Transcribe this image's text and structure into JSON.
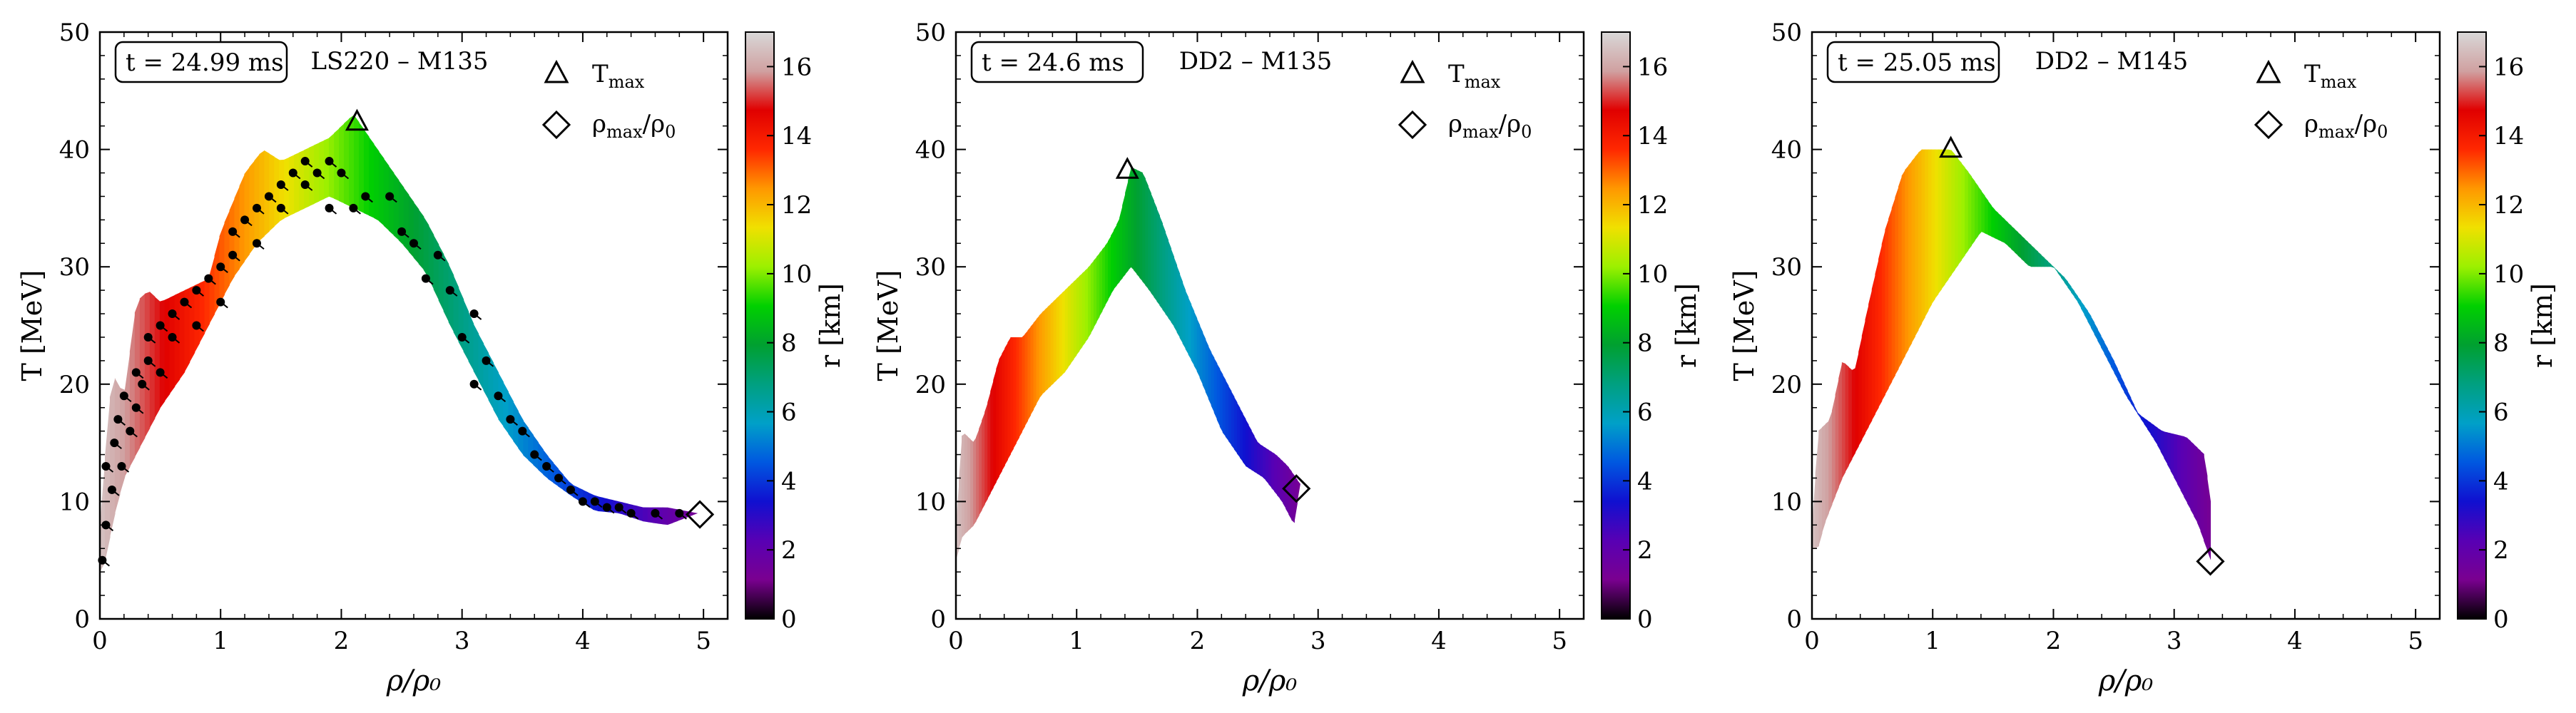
{
  "chart_data": [
    {
      "type": "scatter",
      "title": "LS220 – M135",
      "time_label": "t = 24.99 ms",
      "xlabel": "ρ/ρ₀",
      "ylabel": "T [MeV]",
      "xlim": [
        0,
        5.2
      ],
      "ylim": [
        0,
        50
      ],
      "xticks": [
        0,
        1,
        2,
        3,
        4,
        5
      ],
      "yticks": [
        0,
        10,
        20,
        30,
        40,
        50
      ],
      "band_upper": [
        [
          0.0,
          8
        ],
        [
          0.05,
          15
        ],
        [
          0.1,
          21
        ],
        [
          0.2,
          19
        ],
        [
          0.3,
          27
        ],
        [
          0.4,
          28
        ],
        [
          0.5,
          27
        ],
        [
          0.7,
          28
        ],
        [
          0.9,
          29
        ],
        [
          1.0,
          33
        ],
        [
          1.2,
          38
        ],
        [
          1.35,
          40
        ],
        [
          1.5,
          39
        ],
        [
          1.7,
          40
        ],
        [
          1.9,
          41
        ],
        [
          2.1,
          43
        ],
        [
          2.3,
          40
        ],
        [
          2.5,
          37
        ],
        [
          2.7,
          34
        ],
        [
          2.9,
          30
        ],
        [
          3.1,
          25
        ],
        [
          3.3,
          21
        ],
        [
          3.5,
          17
        ],
        [
          3.7,
          14
        ],
        [
          3.9,
          11.5
        ],
        [
          4.1,
          10.5
        ],
        [
          4.3,
          10
        ],
        [
          4.5,
          9.5
        ],
        [
          4.7,
          9.5
        ],
        [
          4.95,
          9
        ]
      ],
      "band_lower": [
        [
          4.95,
          9
        ],
        [
          4.7,
          8
        ],
        [
          4.5,
          8.3
        ],
        [
          4.3,
          9
        ],
        [
          4.1,
          9.2
        ],
        [
          3.9,
          10.5
        ],
        [
          3.7,
          12
        ],
        [
          3.5,
          14
        ],
        [
          3.3,
          17
        ],
        [
          3.1,
          21
        ],
        [
          2.9,
          25
        ],
        [
          2.7,
          29.5
        ],
        [
          2.5,
          32
        ],
        [
          2.3,
          34
        ],
        [
          2.1,
          35
        ],
        [
          1.9,
          36
        ],
        [
          1.7,
          35
        ],
        [
          1.5,
          34
        ],
        [
          1.3,
          32
        ],
        [
          1.1,
          29
        ],
        [
          0.9,
          25
        ],
        [
          0.7,
          21
        ],
        [
          0.5,
          18
        ],
        [
          0.3,
          14
        ],
        [
          0.2,
          12
        ],
        [
          0.1,
          8
        ],
        [
          0.05,
          5
        ],
        [
          0.0,
          4
        ]
      ],
      "markers": [
        {
          "x": 0.02,
          "y": 5
        },
        {
          "x": 0.05,
          "y": 8
        },
        {
          "x": 0.05,
          "y": 13
        },
        {
          "x": 0.1,
          "y": 11
        },
        {
          "x": 0.12,
          "y": 15
        },
        {
          "x": 0.15,
          "y": 17
        },
        {
          "x": 0.18,
          "y": 13
        },
        {
          "x": 0.2,
          "y": 19
        },
        {
          "x": 0.25,
          "y": 16
        },
        {
          "x": 0.3,
          "y": 18
        },
        {
          "x": 0.3,
          "y": 21
        },
        {
          "x": 0.35,
          "y": 20
        },
        {
          "x": 0.4,
          "y": 22
        },
        {
          "x": 0.4,
          "y": 24
        },
        {
          "x": 0.5,
          "y": 21
        },
        {
          "x": 0.5,
          "y": 25
        },
        {
          "x": 0.6,
          "y": 24
        },
        {
          "x": 0.6,
          "y": 26
        },
        {
          "x": 0.7,
          "y": 27
        },
        {
          "x": 0.8,
          "y": 28
        },
        {
          "x": 0.8,
          "y": 25
        },
        {
          "x": 0.9,
          "y": 29
        },
        {
          "x": 1.0,
          "y": 30
        },
        {
          "x": 1.0,
          "y": 27
        },
        {
          "x": 1.1,
          "y": 31
        },
        {
          "x": 1.1,
          "y": 33
        },
        {
          "x": 1.2,
          "y": 34
        },
        {
          "x": 1.3,
          "y": 32
        },
        {
          "x": 1.3,
          "y": 35
        },
        {
          "x": 1.4,
          "y": 36
        },
        {
          "x": 1.5,
          "y": 35
        },
        {
          "x": 1.5,
          "y": 37
        },
        {
          "x": 1.6,
          "y": 38
        },
        {
          "x": 1.7,
          "y": 37
        },
        {
          "x": 1.7,
          "y": 39
        },
        {
          "x": 1.8,
          "y": 38
        },
        {
          "x": 1.9,
          "y": 39
        },
        {
          "x": 1.9,
          "y": 35
        },
        {
          "x": 2.0,
          "y": 38
        },
        {
          "x": 2.1,
          "y": 35
        },
        {
          "x": 2.2,
          "y": 36
        },
        {
          "x": 2.4,
          "y": 36
        },
        {
          "x": 2.5,
          "y": 33
        },
        {
          "x": 2.6,
          "y": 32
        },
        {
          "x": 2.7,
          "y": 29
        },
        {
          "x": 2.8,
          "y": 31
        },
        {
          "x": 2.9,
          "y": 28
        },
        {
          "x": 3.0,
          "y": 24
        },
        {
          "x": 3.1,
          "y": 26
        },
        {
          "x": 3.1,
          "y": 20
        },
        {
          "x": 3.2,
          "y": 22
        },
        {
          "x": 3.3,
          "y": 19
        },
        {
          "x": 3.4,
          "y": 17
        },
        {
          "x": 3.5,
          "y": 16
        },
        {
          "x": 3.6,
          "y": 14
        },
        {
          "x": 3.7,
          "y": 13
        },
        {
          "x": 3.8,
          "y": 12
        },
        {
          "x": 3.9,
          "y": 11
        },
        {
          "x": 4.0,
          "y": 10
        },
        {
          "x": 4.1,
          "y": 10
        },
        {
          "x": 4.2,
          "y": 9.5
        },
        {
          "x": 4.3,
          "y": 9.5
        },
        {
          "x": 4.4,
          "y": 9
        },
        {
          "x": 4.6,
          "y": 9
        },
        {
          "x": 4.8,
          "y": 9
        }
      ],
      "t_max": {
        "x": 2.13,
        "y": 42.3
      },
      "rho_max": {
        "x": 4.97,
        "y": 8.9
      },
      "legend": [
        "T_max",
        "ρ_max/ρ₀"
      ]
    },
    {
      "type": "scatter",
      "title": "DD2 – M135",
      "time_label": "t = 24.6 ms",
      "xlabel": "ρ/ρ₀",
      "ylabel": "T [MeV]",
      "xlim": [
        0,
        5.2
      ],
      "ylim": [
        0,
        50
      ],
      "xticks": [
        0,
        1,
        2,
        3,
        4,
        5
      ],
      "yticks": [
        0,
        10,
        20,
        30,
        40,
        50
      ],
      "band_upper": [
        [
          0.0,
          8
        ],
        [
          0.05,
          16
        ],
        [
          0.15,
          15
        ],
        [
          0.25,
          18
        ],
        [
          0.35,
          22
        ],
        [
          0.45,
          24
        ],
        [
          0.55,
          24
        ],
        [
          0.7,
          26
        ],
        [
          0.9,
          28
        ],
        [
          1.1,
          30
        ],
        [
          1.25,
          32
        ],
        [
          1.35,
          34
        ],
        [
          1.45,
          38.5
        ],
        [
          1.55,
          38
        ],
        [
          1.7,
          34
        ],
        [
          1.9,
          28
        ],
        [
          2.1,
          23
        ],
        [
          2.3,
          19
        ],
        [
          2.5,
          15
        ],
        [
          2.65,
          14
        ],
        [
          2.75,
          13
        ],
        [
          2.85,
          11.5
        ]
      ],
      "band_lower": [
        [
          2.85,
          11.5
        ],
        [
          2.8,
          8
        ],
        [
          2.7,
          10
        ],
        [
          2.55,
          12
        ],
        [
          2.4,
          13
        ],
        [
          2.2,
          16
        ],
        [
          2.0,
          21
        ],
        [
          1.8,
          25
        ],
        [
          1.6,
          28
        ],
        [
          1.45,
          30
        ],
        [
          1.3,
          28
        ],
        [
          1.1,
          24
        ],
        [
          0.9,
          21
        ],
        [
          0.7,
          19
        ],
        [
          0.5,
          15
        ],
        [
          0.3,
          11
        ],
        [
          0.15,
          8
        ],
        [
          0.05,
          7
        ],
        [
          0.0,
          5
        ]
      ],
      "markers": [],
      "t_max": {
        "x": 1.42,
        "y": 38.2
      },
      "rho_max": {
        "x": 2.82,
        "y": 11.1
      },
      "legend": [
        "T_max",
        "ρ_max/ρ₀"
      ]
    },
    {
      "type": "scatter",
      "title": "DD2 – M145",
      "time_label": "t = 25.05 ms",
      "xlabel": "ρ/ρ₀",
      "ylabel": "T [MeV]",
      "xlim": [
        0,
        5.2
      ],
      "ylim": [
        0,
        50
      ],
      "xticks": [
        0,
        1,
        2,
        3,
        4,
        5
      ],
      "yticks": [
        0,
        10,
        20,
        30,
        40,
        50
      ],
      "band_upper": [
        [
          0.0,
          8
        ],
        [
          0.05,
          16
        ],
        [
          0.15,
          17
        ],
        [
          0.25,
          22
        ],
        [
          0.35,
          21
        ],
        [
          0.45,
          26
        ],
        [
          0.6,
          33
        ],
        [
          0.75,
          38
        ],
        [
          0.9,
          40
        ],
        [
          1.05,
          40
        ],
        [
          1.15,
          40
        ],
        [
          1.3,
          38
        ],
        [
          1.5,
          35
        ],
        [
          1.7,
          33
        ],
        [
          1.9,
          31
        ],
        [
          2.1,
          29
        ],
        [
          2.3,
          26
        ],
        [
          2.5,
          22
        ],
        [
          2.7,
          17.5
        ],
        [
          2.9,
          16
        ],
        [
          3.1,
          15.5
        ],
        [
          3.25,
          14
        ],
        [
          3.3,
          10
        ]
      ],
      "band_lower": [
        [
          3.3,
          10
        ],
        [
          3.3,
          5
        ],
        [
          3.2,
          8
        ],
        [
          3.05,
          11
        ],
        [
          2.85,
          15
        ],
        [
          2.6,
          19
        ],
        [
          2.4,
          23
        ],
        [
          2.2,
          27
        ],
        [
          2.0,
          30
        ],
        [
          1.8,
          30
        ],
        [
          1.6,
          32
        ],
        [
          1.4,
          33
        ],
        [
          1.2,
          30
        ],
        [
          1.0,
          27
        ],
        [
          0.8,
          23
        ],
        [
          0.6,
          19
        ],
        [
          0.4,
          15
        ],
        [
          0.25,
          12
        ],
        [
          0.1,
          8
        ],
        [
          0.05,
          6
        ],
        [
          0.0,
          6
        ]
      ],
      "markers": [],
      "t_max": {
        "x": 1.15,
        "y": 40
      },
      "rho_max": {
        "x": 3.3,
        "y": 4.9
      },
      "legend": [
        "T_max",
        "ρ_max/ρ₀"
      ]
    }
  ],
  "colorbar": {
    "label": "r [km]",
    "range": [
      0,
      17
    ],
    "ticks": [
      0,
      2,
      4,
      6,
      8,
      10,
      12,
      14,
      16
    ],
    "colors": [
      "#000000",
      "#7a0090",
      "#5800b4",
      "#1010d0",
      "#0058e0",
      "#00a0c8",
      "#00a080",
      "#00a030",
      "#00d000",
      "#9cf000",
      "#f0e000",
      "#ff9800",
      "#ff2800",
      "#e00000",
      "#d0a0a0",
      "#d8d8d8"
    ]
  },
  "legend": {
    "t_max_base": "T",
    "t_max_sub": "max",
    "rho_base": "ρ",
    "rho_sub": "max",
    "rho_rest": "/ρ",
    "rho_rest_sub": "0"
  }
}
